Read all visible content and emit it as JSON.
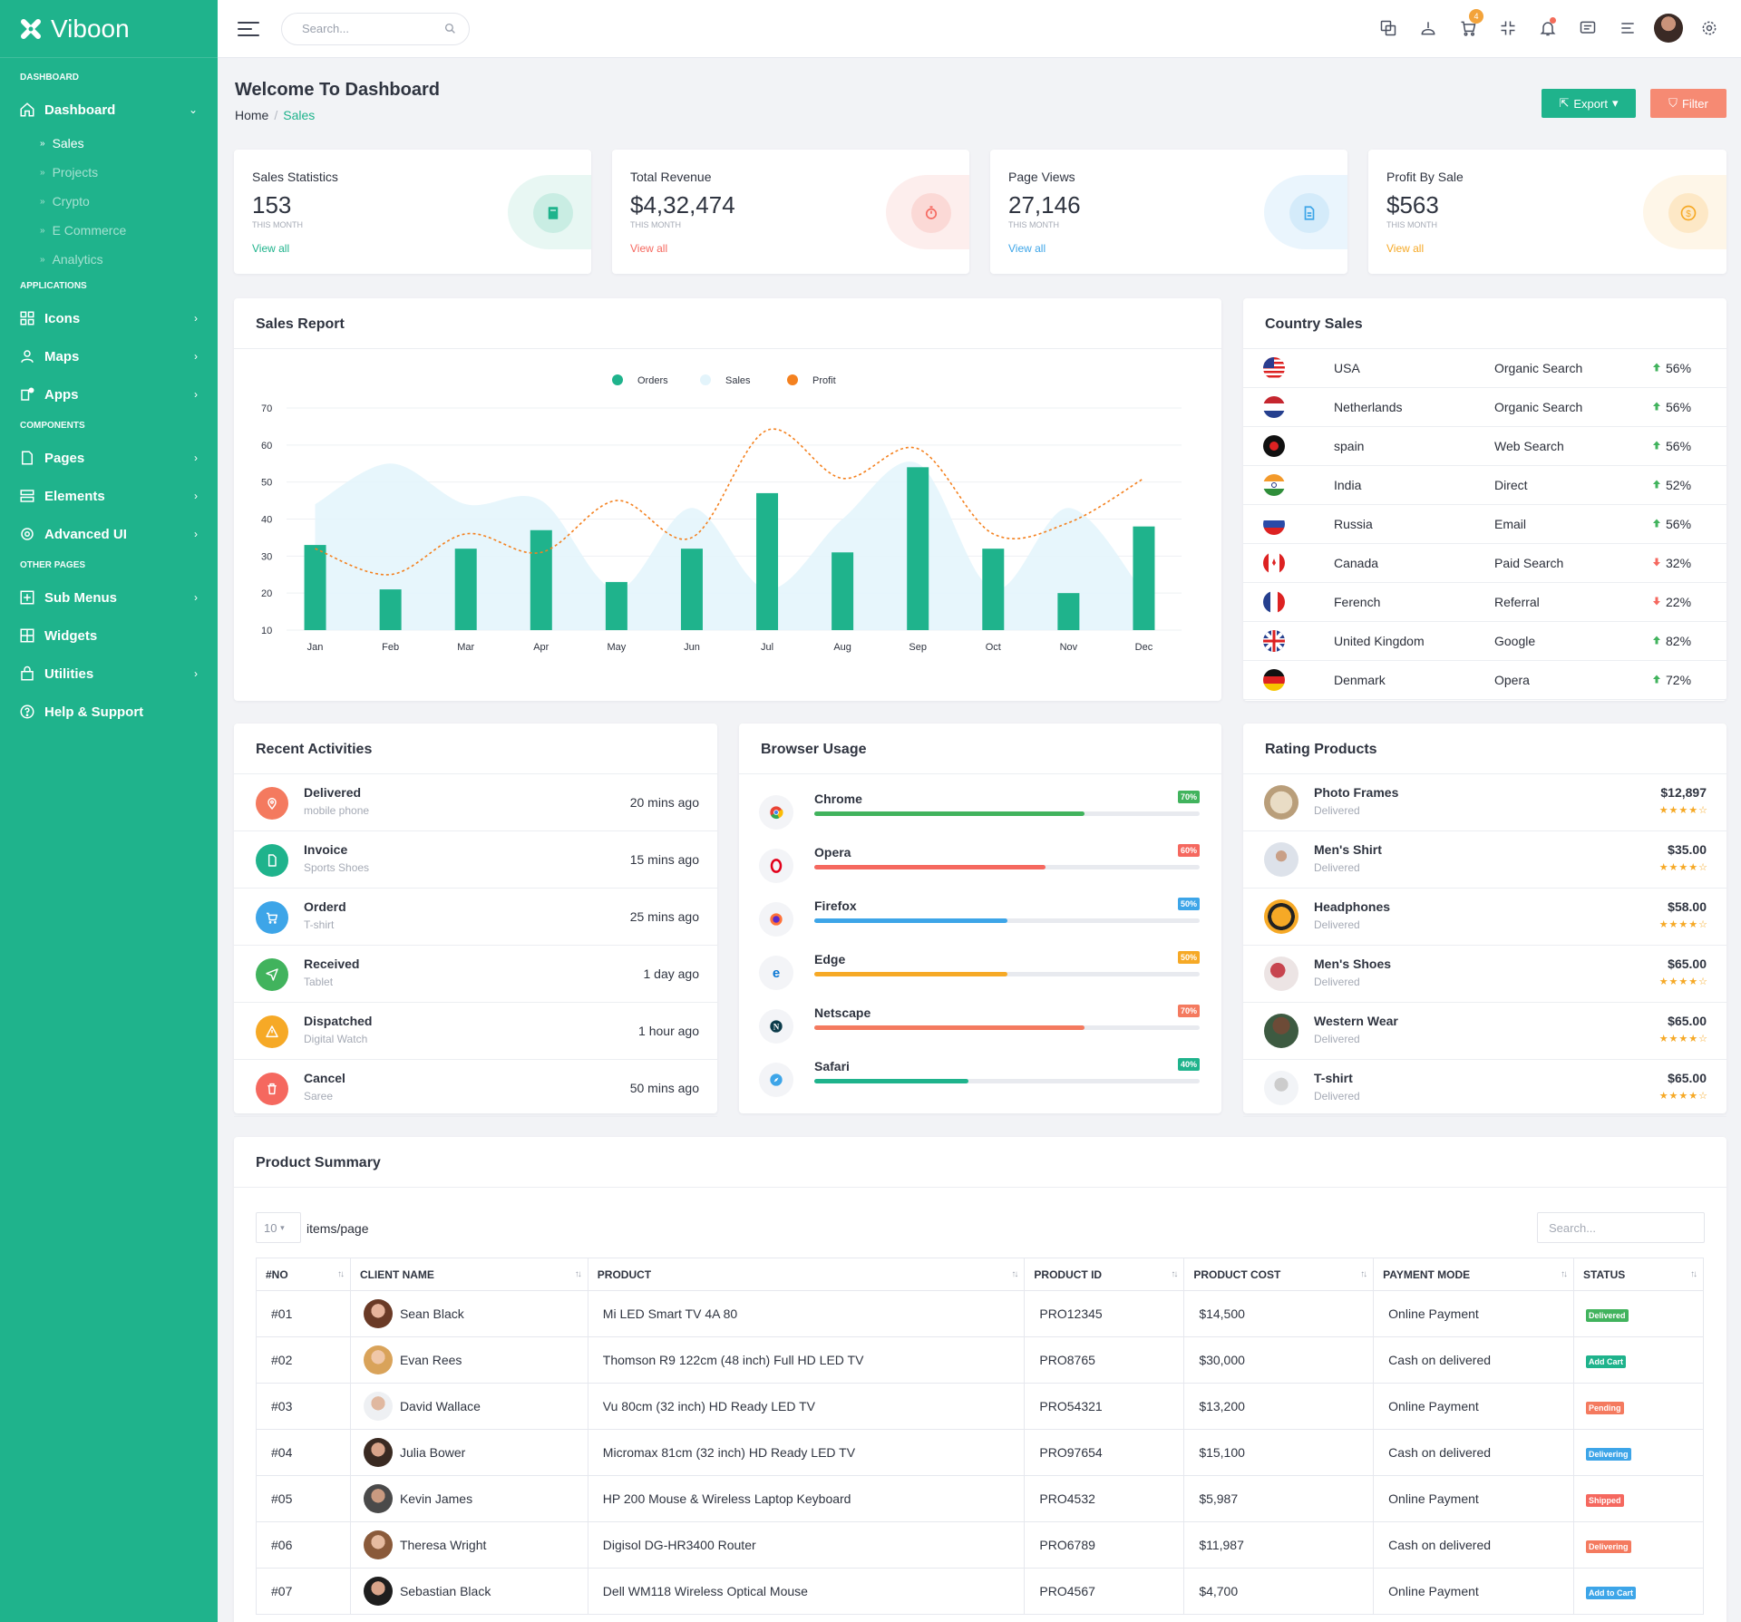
{
  "brand": {
    "name": "Viboon"
  },
  "sidebar": {
    "sections": {
      "dashboard": "DASHBOARD",
      "applications": "APPLICATIONS",
      "components": "COMPONENTS",
      "other": "OTHER PAGES"
    },
    "dashboard": "Dashboard",
    "sub": [
      "Sales",
      "Projects",
      "Crypto",
      "E Commerce",
      "Analytics"
    ],
    "apps": [
      "Icons",
      "Maps",
      "Apps"
    ],
    "components": [
      "Pages",
      "Elements",
      "Advanced UI"
    ],
    "other": [
      "Sub Menus",
      "Widgets",
      "Utilities",
      "Help & Support"
    ]
  },
  "topbar": {
    "search_placeholder": "Search...",
    "cart_count": "4"
  },
  "page": {
    "title": "Welcome To Dashboard",
    "crumb_home": "Home",
    "crumb_current": "Sales",
    "export": "Export",
    "filter": "Filter"
  },
  "stats": [
    {
      "label": "Sales Statistics",
      "value": "153",
      "sub": "THIS MONTH",
      "link": "View all",
      "color": "#1fb38c"
    },
    {
      "label": "Total Revenue",
      "value": "$4,32,474",
      "sub": "THIS MONTH",
      "link": "View all",
      "color": "#f5685f"
    },
    {
      "label": "Page Views",
      "value": "27,146",
      "sub": "THIS MONTH",
      "link": "View all",
      "color": "#3da5e8"
    },
    {
      "label": "Profit By Sale",
      "value": "$563",
      "sub": "THIS MONTH",
      "link": "View all",
      "color": "#f6a926"
    }
  ],
  "sales_report": {
    "title": "Sales Report"
  },
  "chart_data": {
    "type": "bar",
    "categories": [
      "Jan",
      "Feb",
      "Mar",
      "Apr",
      "May",
      "Jun",
      "Jul",
      "Aug",
      "Sep",
      "Oct",
      "Nov",
      "Dec"
    ],
    "series": [
      {
        "name": "Orders",
        "type": "bar",
        "color": "#1fb38c",
        "values": [
          33,
          21,
          32,
          37,
          23,
          32,
          47,
          31,
          54,
          32,
          20,
          38
        ]
      },
      {
        "name": "Sales",
        "type": "area",
        "color": "#e3f4fb",
        "values": [
          44,
          55,
          44,
          45,
          21,
          43,
          21,
          40,
          55,
          21,
          43,
          20
        ]
      },
      {
        "name": "Profit",
        "type": "line",
        "color": "#f4811f",
        "values": [
          32,
          25,
          36,
          31,
          45,
          35,
          64,
          51,
          59,
          36,
          39,
          51
        ]
      }
    ],
    "ylim": [
      10,
      70
    ],
    "yticks": [
      70,
      60,
      50,
      40,
      30,
      20,
      10
    ],
    "legend": "top-center"
  },
  "country_sales": {
    "title": "Country Sales",
    "rows": [
      {
        "country": "USA",
        "source": "Organic Search",
        "pct": "56%",
        "trend": "up"
      },
      {
        "country": "Netherlands",
        "source": "Organic Search",
        "pct": "56%",
        "trend": "up"
      },
      {
        "country": "spain",
        "source": "Web Search",
        "pct": "56%",
        "trend": "up"
      },
      {
        "country": "India",
        "source": "Direct",
        "pct": "52%",
        "trend": "up"
      },
      {
        "country": "Russia",
        "source": "Email",
        "pct": "56%",
        "trend": "up"
      },
      {
        "country": "Canada",
        "source": "Paid Search",
        "pct": "32%",
        "trend": "down"
      },
      {
        "country": "Ferench",
        "source": "Referral",
        "pct": "22%",
        "trend": "down"
      },
      {
        "country": "United Kingdom",
        "source": "Google",
        "pct": "82%",
        "trend": "up"
      },
      {
        "country": "Denmark",
        "source": "Opera",
        "pct": "72%",
        "trend": "up"
      }
    ]
  },
  "activities": {
    "title": "Recent Activities",
    "rows": [
      {
        "title": "Delivered",
        "sub": "mobile phone",
        "time": "20 mins ago",
        "color": "#f47a5f",
        "icon": "location-icon"
      },
      {
        "title": "Invoice",
        "sub": "Sports Shoes",
        "time": "15 mins ago",
        "color": "#1fb38c",
        "icon": "file-icon"
      },
      {
        "title": "Orderd",
        "sub": "T-shirt",
        "time": "25 mins ago",
        "color": "#3da5e8",
        "icon": "cart-icon"
      },
      {
        "title": "Received",
        "sub": "Tablet",
        "time": "1 day ago",
        "color": "#41b35d",
        "icon": "send-icon"
      },
      {
        "title": "Dispatched",
        "sub": "Digital Watch",
        "time": "1 hour ago",
        "color": "#f6a926",
        "icon": "warning-icon"
      },
      {
        "title": "Cancel",
        "sub": "Saree",
        "time": "50 mins ago",
        "color": "#f5685f",
        "icon": "trash-icon"
      }
    ]
  },
  "browser": {
    "title": "Browser Usage",
    "rows": [
      {
        "name": "Chrome",
        "pct": "70%",
        "level": 0.7,
        "color": "#41b35d"
      },
      {
        "name": "Opera",
        "pct": "60%",
        "level": 0.6,
        "color": "#f5685f"
      },
      {
        "name": "Firefox",
        "pct": "50%",
        "level": 0.5,
        "color": "#3da5e8"
      },
      {
        "name": "Edge",
        "pct": "50%",
        "level": 0.5,
        "color": "#f6a926"
      },
      {
        "name": "Netscape",
        "pct": "70%",
        "level": 0.7,
        "color": "#f47a5f"
      },
      {
        "name": "Safari",
        "pct": "40%",
        "level": 0.4,
        "color": "#1fb38c"
      }
    ]
  },
  "rating": {
    "title": "Rating Products",
    "rows": [
      {
        "name": "Photo Frames",
        "status": "Delivered",
        "price": "$12,897",
        "stars": "★★★★☆"
      },
      {
        "name": "Men's Shirt",
        "status": "Delivered",
        "price": "$35.00",
        "stars": "★★★★☆"
      },
      {
        "name": "Headphones",
        "status": "Delivered",
        "price": "$58.00",
        "stars": "★★★★☆"
      },
      {
        "name": "Men's Shoes",
        "status": "Delivered",
        "price": "$65.00",
        "stars": "★★★★☆"
      },
      {
        "name": "Western Wear",
        "status": "Delivered",
        "price": "$65.00",
        "stars": "★★★★☆"
      },
      {
        "name": "T-shirt",
        "status": "Delivered",
        "price": "$65.00",
        "stars": "★★★★☆"
      }
    ]
  },
  "product_summary": {
    "title": "Product Summary",
    "per_page": "10",
    "per_page_label": "items/page",
    "search_placeholder": "Search...",
    "columns": [
      "#NO",
      "CLIENT NAME",
      "PRODUCT",
      "PRODUCT ID",
      "PRODUCT COST",
      "PAYMENT MODE",
      "STATUS"
    ],
    "rows": [
      {
        "no": "#01",
        "client": "Sean Black",
        "product": "Mi LED Smart TV 4A 80",
        "id": "PRO12345",
        "cost": "$14,500",
        "payment": "Online Payment",
        "status": "Delivered",
        "status_color": "#41b35d"
      },
      {
        "no": "#02",
        "client": "Evan Rees",
        "product": "Thomson R9 122cm (48 inch) Full HD LED TV",
        "id": "PRO8765",
        "cost": "$30,000",
        "payment": "Cash on delivered",
        "status": "Add Cart",
        "status_color": "#1fb38c"
      },
      {
        "no": "#03",
        "client": "David Wallace",
        "product": "Vu 80cm (32 inch) HD Ready LED TV",
        "id": "PRO54321",
        "cost": "$13,200",
        "payment": "Online Payment",
        "status": "Pending",
        "status_color": "#f47a5f"
      },
      {
        "no": "#04",
        "client": "Julia Bower",
        "product": "Micromax 81cm (32 inch) HD Ready LED TV",
        "id": "PRO97654",
        "cost": "$15,100",
        "payment": "Cash on delivered",
        "status": "Delivering",
        "status_color": "#3da5e8"
      },
      {
        "no": "#05",
        "client": "Kevin James",
        "product": "HP 200 Mouse & Wireless Laptop Keyboard",
        "id": "PRO4532",
        "cost": "$5,987",
        "payment": "Online Payment",
        "status": "Shipped",
        "status_color": "#f5685f"
      },
      {
        "no": "#06",
        "client": "Theresa Wright",
        "product": "Digisol DG-HR3400 Router",
        "id": "PRO6789",
        "cost": "$11,987",
        "payment": "Cash on delivered",
        "status": "Delivering",
        "status_color": "#f47a5f"
      },
      {
        "no": "#07",
        "client": "Sebastian Black",
        "product": "Dell WM118 Wireless Optical Mouse",
        "id": "PRO4567",
        "cost": "$4,700",
        "payment": "Online Payment",
        "status": "Add to Cart",
        "status_color": "#3da5e8"
      }
    ]
  }
}
